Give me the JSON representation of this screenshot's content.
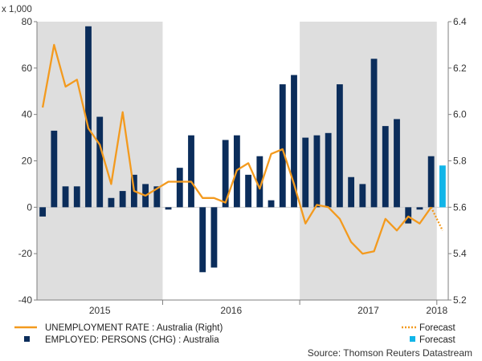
{
  "chart_data": {
    "type": "bar+line",
    "left_axis_unit": "x 1,000",
    "left_axis": {
      "min": -40,
      "max": 80,
      "ticks": [
        -40,
        -20,
        0,
        20,
        40,
        60,
        80
      ]
    },
    "right_axis": {
      "min": 5.2,
      "max": 6.4,
      "ticks": [
        "5.2",
        "5.4",
        "5.6",
        "5.8",
        "6.0",
        "6.2",
        "6.4"
      ]
    },
    "year_labels": [
      "2015",
      "2016",
      "2017",
      "2018"
    ],
    "shaded_years": [
      "2015",
      "2017"
    ],
    "bars": {
      "name": "EMPLOYED: PERSONS (CHG) : Australia",
      "color": "#0b2d5b",
      "values": [
        -4,
        33,
        9,
        9,
        78,
        39,
        4,
        7,
        14,
        10,
        9,
        -1,
        17,
        31,
        -28,
        -26,
        29,
        31,
        14,
        22,
        3,
        53,
        57,
        30,
        31,
        32,
        53,
        13,
        10,
        64,
        35,
        38,
        -7,
        -1,
        22
      ]
    },
    "forecast_bar": {
      "name": "Forecast",
      "value": 18,
      "color": "#11b5e8"
    },
    "line": {
      "name": "UNEMPLOYMENT RATE : Australia (Right)",
      "color": "#f39a1e",
      "values": [
        6.03,
        6.3,
        6.12,
        6.15,
        5.94,
        5.87,
        5.7,
        6.01,
        5.67,
        5.65,
        5.68,
        5.71,
        5.71,
        5.71,
        5.64,
        5.64,
        5.62,
        5.76,
        5.79,
        5.68,
        5.83,
        5.85,
        5.7,
        5.53,
        5.61,
        5.6,
        5.55,
        5.45,
        5.4,
        5.41,
        5.55,
        5.5,
        5.56,
        5.53,
        5.6
      ]
    },
    "forecast_line": {
      "name": "Forecast",
      "from": 5.6,
      "value": 5.5,
      "color": "#f39a1e"
    },
    "source": "Source: Thomson Reuters Datastream"
  },
  "legend": {
    "line_label": "UNEMPLOYMENT RATE : Australia (Right)",
    "bar_label": "EMPLOYED: PERSONS (CHG) : Australia",
    "forecast_line_label": "Forecast",
    "forecast_bar_label": "Forecast"
  }
}
